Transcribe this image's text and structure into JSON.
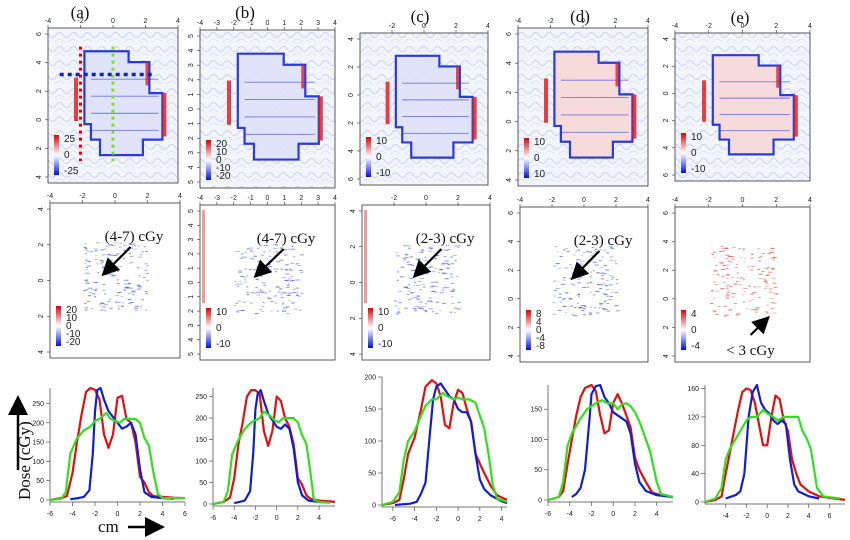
{
  "figure": {
    "panel_labels": [
      "(a)",
      "(b)",
      "(c)",
      "(d)",
      "(e)"
    ],
    "y_axis_title": "Dose (cGy)",
    "x_axis_title": "cm",
    "colors": {
      "red": "#e01010",
      "blue": "#1020d0",
      "green": "#30e020",
      "map_red": "#e02020",
      "map_blue": "#2030e0",
      "map_bg": "#e8ecfb"
    }
  },
  "chart_data": [
    {
      "type": "heatmap",
      "row": "dose-difference maps",
      "panel": "(a)",
      "x_ticks": [
        "-4",
        "-2",
        "0",
        "2",
        "4"
      ],
      "y_ticks": [
        "6",
        "4",
        "2",
        "0",
        "2",
        "4"
      ],
      "colorbar": [
        "25",
        "0",
        "-25"
      ],
      "xlim": [
        -4,
        4
      ],
      "ylim": [
        -6,
        6
      ],
      "profile_lines": {
        "red_vertical_x": -2,
        "green_vertical_x": 0,
        "blue_horizontal_y": 2.7
      }
    },
    {
      "type": "heatmap",
      "row": "dose-difference maps",
      "panel": "(b)",
      "x_ticks": [
        "-4",
        "-3",
        "-2",
        "-1",
        "0",
        "1",
        "2",
        "3",
        "4"
      ],
      "y_ticks": [
        "5",
        "4",
        "3",
        "2",
        "1",
        "0",
        "1",
        "2",
        "3",
        "4",
        "5"
      ],
      "colorbar": [
        "20",
        "10",
        "0",
        "-10",
        "-20"
      ],
      "xlim": [
        -4,
        4
      ],
      "ylim": [
        -5,
        5
      ]
    },
    {
      "type": "heatmap",
      "row": "dose-difference maps",
      "panel": "(c)",
      "x_ticks": [
        "-2",
        "0",
        "2",
        "4"
      ],
      "y_ticks": [
        "4",
        "2",
        "0",
        "2",
        "4",
        "6"
      ],
      "colorbar": [
        "10",
        "0",
        "-10"
      ],
      "xlim": [
        -4,
        4
      ],
      "ylim": [
        -6,
        6
      ]
    },
    {
      "type": "heatmap",
      "row": "dose-difference maps",
      "panel": "(d)",
      "x_ticks": [
        "-4",
        "-2",
        "0",
        "2",
        "4"
      ],
      "y_ticks": [
        "6",
        "4",
        "2",
        "0",
        "2",
        "4"
      ],
      "colorbar": [
        "10",
        "0",
        "10"
      ],
      "xlim": [
        -4,
        4
      ],
      "ylim": [
        -6,
        6
      ]
    },
    {
      "type": "heatmap",
      "row": "dose-difference maps",
      "panel": "(e)",
      "x_ticks": [
        "-4",
        "-2",
        "0",
        "2",
        "4"
      ],
      "y_ticks": [
        "4",
        "2",
        "0",
        "2",
        "4",
        "6"
      ],
      "colorbar": [
        "10",
        "0",
        "-10"
      ],
      "xlim": [
        -4,
        4
      ],
      "ylim": [
        -6,
        6
      ]
    },
    {
      "type": "heatmap",
      "row": "residual maps",
      "panel": "(a)",
      "x_ticks": [
        "-4",
        "-2",
        "0",
        "2",
        "4"
      ],
      "y_ticks": [
        "4",
        "2",
        "0",
        "2",
        "4"
      ],
      "colorbar": [
        "20",
        "10",
        "0",
        "-10",
        "-20"
      ],
      "annotation": "(4-7) cGy"
    },
    {
      "type": "heatmap",
      "row": "residual maps",
      "panel": "(b)",
      "x_ticks": [
        "-4",
        "-3",
        "-2",
        "-1",
        "0",
        "1",
        "2",
        "3",
        "4"
      ],
      "y_ticks": [
        "5",
        "4",
        "3",
        "2",
        "1",
        "0",
        "1",
        "2",
        "3",
        "4",
        "5"
      ],
      "colorbar": [
        "10",
        "0",
        "-10"
      ],
      "annotation": "(4-7) cGy"
    },
    {
      "type": "heatmap",
      "row": "residual maps",
      "panel": "(c)",
      "x_ticks": [
        "-2",
        "0",
        "2",
        "4"
      ],
      "y_ticks": [
        "4",
        "2",
        "0",
        "2",
        "4"
      ],
      "colorbar": [
        "10",
        "0",
        "-10"
      ],
      "annotation": "(2-3) cGy"
    },
    {
      "type": "heatmap",
      "row": "residual maps",
      "panel": "(d)",
      "x_ticks": [
        "-4",
        "-2",
        "0",
        "2",
        "4"
      ],
      "y_ticks": [
        "6",
        "4",
        "2",
        "0",
        "2",
        "4"
      ],
      "colorbar": [
        "8",
        "4",
        "0",
        "-4",
        "-8"
      ],
      "annotation": "(2-3) cGy"
    },
    {
      "type": "heatmap",
      "row": "residual maps",
      "panel": "(e)",
      "x_ticks": [
        "-4",
        "-2",
        "0",
        "2",
        "4"
      ],
      "y_ticks": [
        "6",
        "4",
        "2",
        "0",
        "2",
        "4"
      ],
      "colorbar": [
        "4",
        "0",
        "-4"
      ],
      "annotation": "< 3 cGy"
    },
    {
      "type": "line",
      "panel": "(a)",
      "xlim": [
        -6,
        6
      ],
      "ylim": [
        0,
        290
      ],
      "x_ticks": [
        -6,
        -4,
        -2,
        0,
        2,
        4,
        6
      ],
      "y_ticks": [
        0,
        50,
        100,
        150,
        200,
        250
      ],
      "series": [
        {
          "name": "red",
          "x": [
            -6,
            -5,
            -4.5,
            -4,
            -3.6,
            -3.2,
            -2.8,
            -2.4,
            -2,
            -1.6,
            -1.2,
            -0.8,
            -0.4,
            0,
            0.4,
            0.8,
            1.2,
            1.6,
            2,
            2.4,
            2.8,
            3.2,
            4,
            5,
            6
          ],
          "y": [
            0,
            5,
            10,
            70,
            150,
            220,
            280,
            290,
            285,
            260,
            170,
            135,
            170,
            265,
            270,
            210,
            200,
            150,
            60,
            45,
            20,
            10,
            8,
            6,
            5
          ]
        },
        {
          "name": "blue",
          "x": [
            -4.2,
            -3.5,
            -3,
            -2.5,
            -2.2,
            -2,
            -1.8,
            -1.5,
            -1.2,
            -0.8,
            -0.4,
            0,
            0.4,
            0.8,
            1.2,
            1.6,
            2,
            2.4,
            3,
            4,
            5
          ],
          "y": [
            2,
            5,
            8,
            25,
            120,
            230,
            285,
            290,
            260,
            230,
            215,
            200,
            185,
            190,
            200,
            170,
            80,
            20,
            8,
            5,
            3
          ]
        },
        {
          "name": "green",
          "x": [
            -6,
            -5,
            -4.6,
            -4.2,
            -3.6,
            -3,
            -2.4,
            -2,
            -1.6,
            -1,
            -0.6,
            -0.2,
            0.2,
            0.6,
            1,
            1.6,
            2,
            2.4,
            2.8,
            3.2,
            3.6,
            4,
            5,
            6
          ],
          "y": [
            0,
            3,
            20,
            120,
            160,
            180,
            190,
            205,
            210,
            225,
            210,
            205,
            200,
            210,
            210,
            210,
            200,
            160,
            140,
            70,
            15,
            5,
            5,
            5
          ]
        }
      ]
    },
    {
      "type": "line",
      "panel": "(b)",
      "xlim": [
        -6,
        5.5
      ],
      "ylim": [
        0,
        270
      ],
      "x_ticks": [
        -6,
        -4,
        -2,
        0,
        2,
        4
      ],
      "y_ticks": [
        0,
        50,
        100,
        150,
        200,
        250
      ],
      "series": [
        {
          "name": "red",
          "x": [
            -6,
            -5,
            -4.4,
            -4,
            -3.6,
            -3.2,
            -2.8,
            -2.4,
            -2,
            -1.6,
            -1.2,
            -0.8,
            -0.4,
            0,
            0.4,
            0.8,
            1.2,
            1.6,
            2,
            2.4,
            2.8,
            3.2,
            4,
            5,
            5.5
          ],
          "y": [
            0,
            5,
            15,
            60,
            140,
            190,
            250,
            265,
            265,
            255,
            170,
            135,
            170,
            250,
            240,
            200,
            180,
            140,
            60,
            45,
            20,
            12,
            8,
            6,
            5
          ]
        },
        {
          "name": "blue",
          "x": [
            -4,
            -3.5,
            -3,
            -2.5,
            -2.2,
            -2,
            -1.8,
            -1.5,
            -1.2,
            -0.8,
            -0.4,
            0,
            0.4,
            0.8,
            1.2,
            1.6,
            2,
            2.4,
            3,
            4,
            5
          ],
          "y": [
            2,
            5,
            8,
            30,
            120,
            220,
            255,
            265,
            240,
            210,
            195,
            180,
            175,
            185,
            175,
            130,
            50,
            20,
            8,
            5,
            3
          ]
        },
        {
          "name": "green",
          "x": [
            -6,
            -5,
            -4.6,
            -4.2,
            -3.6,
            -3,
            -2.4,
            -2,
            -1.6,
            -1.2,
            -0.6,
            -0.2,
            0.2,
            0.6,
            1,
            1.6,
            2,
            2.4,
            2.8,
            3.2,
            3.5,
            4,
            5
          ],
          "y": [
            0,
            5,
            30,
            115,
            150,
            175,
            190,
            195,
            200,
            215,
            205,
            195,
            190,
            200,
            200,
            200,
            190,
            160,
            140,
            70,
            10,
            5,
            3
          ]
        }
      ]
    },
    {
      "type": "line",
      "panel": "(c)",
      "xlim": [
        -7,
        4.5
      ],
      "ylim": [
        0,
        200
      ],
      "x_ticks": [
        -6,
        -4,
        -2,
        0,
        2,
        4
      ],
      "y_ticks": [
        0,
        50,
        100,
        150,
        200
      ],
      "series": [
        {
          "name": "red",
          "x": [
            -7,
            -6,
            -5.4,
            -5,
            -4.6,
            -4,
            -3.4,
            -3,
            -2.4,
            -2,
            -1.6,
            -1.2,
            -0.8,
            -0.4,
            0,
            0.4,
            0.8,
            1.2,
            1.6,
            2,
            2.4,
            3,
            3.6,
            4.5
          ],
          "y": [
            0,
            3,
            8,
            40,
            80,
            105,
            150,
            185,
            195,
            190,
            170,
            125,
            120,
            160,
            180,
            175,
            150,
            130,
            80,
            65,
            50,
            30,
            15,
            8
          ]
        },
        {
          "name": "blue",
          "x": [
            -5.8,
            -4.4,
            -3.8,
            -3.4,
            -3,
            -2.6,
            -2.3,
            -2,
            -1.6,
            -1.2,
            -0.8,
            -0.4,
            0,
            0.4,
            0.8,
            1.2,
            1.6,
            2,
            2.4,
            3,
            4,
            4.5
          ],
          "y": [
            0,
            2,
            5,
            18,
            35,
            110,
            165,
            185,
            190,
            180,
            170,
            165,
            150,
            145,
            145,
            130,
            80,
            40,
            25,
            15,
            6,
            3
          ]
        },
        {
          "name": "green",
          "x": [
            -7,
            -6,
            -5.4,
            -5,
            -4.6,
            -4,
            -3.4,
            -3,
            -2.4,
            -2,
            -1.4,
            -1,
            -0.4,
            0,
            0.4,
            1,
            1.6,
            2,
            2.4,
            2.8,
            3.2,
            3.6,
            4.5
          ],
          "y": [
            0,
            5,
            20,
            70,
            100,
            115,
            140,
            155,
            165,
            165,
            175,
            170,
            165,
            168,
            165,
            165,
            160,
            140,
            120,
            80,
            30,
            10,
            5
          ]
        }
      ]
    },
    {
      "type": "line",
      "panel": "(d)",
      "xlim": [
        -6,
        5.5
      ],
      "ylim": [
        0,
        190
      ],
      "x_ticks": [
        -6,
        -4,
        -2,
        0,
        2,
        4
      ],
      "y_ticks": [
        0,
        50,
        100,
        150
      ],
      "series": [
        {
          "name": "red",
          "x": [
            -6,
            -5,
            -4.6,
            -4.2,
            -3.8,
            -3.4,
            -3,
            -2.6,
            -2,
            -1.6,
            -1.2,
            -0.8,
            -0.4,
            0,
            0.4,
            0.8,
            1.2,
            1.6,
            2,
            2.4,
            3,
            3.6,
            4.4,
            5.5
          ],
          "y": [
            0,
            5,
            15,
            60,
            100,
            140,
            170,
            185,
            190,
            180,
            140,
            110,
            115,
            160,
            175,
            160,
            140,
            120,
            70,
            50,
            30,
            12,
            8,
            5
          ]
        },
        {
          "name": "blue",
          "x": [
            -3.8,
            -3.4,
            -3,
            -2.6,
            -2.2,
            -2,
            -1.6,
            -1.2,
            -0.8,
            -0.4,
            0,
            0.4,
            0.8,
            1.2,
            1.6,
            2,
            2.4,
            3,
            4,
            5.5
          ],
          "y": [
            5,
            10,
            20,
            50,
            130,
            175,
            188,
            190,
            170,
            160,
            145,
            140,
            135,
            130,
            110,
            60,
            30,
            15,
            8,
            5
          ]
        },
        {
          "name": "green",
          "x": [
            -6,
            -5,
            -4.6,
            -4.2,
            -3.8,
            -3,
            -2.4,
            -2,
            -1.6,
            -1,
            -0.6,
            0,
            0.4,
            0.8,
            1.2,
            1.6,
            2,
            2.4,
            2.8,
            3.4,
            4,
            4.4,
            5.5
          ],
          "y": [
            0,
            5,
            30,
            90,
            110,
            135,
            150,
            155,
            160,
            165,
            160,
            160,
            150,
            158,
            160,
            155,
            145,
            130,
            110,
            80,
            30,
            10,
            5
          ]
        }
      ]
    },
    {
      "type": "line",
      "panel": "(e)",
      "xlim": [
        -6,
        7.5
      ],
      "ylim": [
        0,
        165
      ],
      "x_ticks": [
        -4,
        -2,
        0,
        2,
        4,
        6
      ],
      "y_ticks": [
        0,
        40,
        80,
        120,
        160
      ],
      "series": [
        {
          "name": "red",
          "x": [
            -6,
            -5,
            -4.4,
            -4,
            -3.6,
            -3.2,
            -2.8,
            -2.4,
            -2,
            -1.6,
            -1.2,
            -0.8,
            -0.4,
            0,
            0.4,
            0.8,
            1.2,
            1.6,
            2,
            2.4,
            2.8,
            3.2,
            4,
            5,
            6.5,
            7.5
          ],
          "y": [
            0,
            3,
            8,
            40,
            70,
            100,
            130,
            155,
            160,
            158,
            140,
            110,
            80,
            80,
            120,
            150,
            145,
            115,
            100,
            60,
            40,
            25,
            15,
            8,
            5,
            3
          ]
        },
        {
          "name": "blue",
          "x": [
            -4,
            -3.4,
            -3,
            -2.6,
            -2.2,
            -1.8,
            -1.4,
            -1,
            -0.6,
            -0.2,
            0.2,
            0.6,
            1,
            1.4,
            1.8,
            2.2,
            2.6,
            3,
            4,
            5
          ],
          "y": [
            5,
            8,
            10,
            15,
            40,
            120,
            155,
            165,
            140,
            130,
            125,
            115,
            110,
            115,
            110,
            60,
            25,
            15,
            8,
            5
          ]
        },
        {
          "name": "green",
          "x": [
            -6,
            -5,
            -4.4,
            -4,
            -3.6,
            -3,
            -2.4,
            -2,
            -1.6,
            -1,
            -0.4,
            0,
            0.6,
            1,
            1.6,
            2,
            2.6,
            3,
            3.4,
            3.8,
            4.2,
            4.8,
            5.4,
            7
          ],
          "y": [
            0,
            5,
            20,
            60,
            75,
            90,
            105,
            115,
            120,
            120,
            130,
            125,
            120,
            115,
            120,
            120,
            120,
            120,
            100,
            90,
            75,
            20,
            8,
            5
          ]
        }
      ]
    }
  ]
}
